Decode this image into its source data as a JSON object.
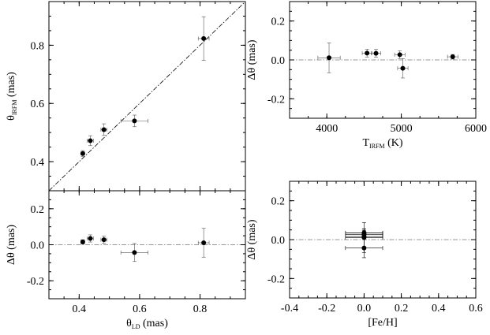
{
  "chart_data": [
    {
      "id": "theta_irfm_vs_theta_ld",
      "type": "scatter",
      "title": "",
      "ylabel": {
        "main": "θ",
        "sub": "IRFM",
        "unit": "(mas)"
      },
      "xlabel": "",
      "xlim": [
        0.3,
        0.95
      ],
      "ylim": [
        0.3,
        0.95
      ],
      "xticks": [],
      "yticks": [
        0.4,
        0.6,
        0.8
      ],
      "ytick_labels": [
        "0.4",
        "0.6",
        "0.8"
      ],
      "reference_line": "one-to-one",
      "points": [
        {
          "x": 0.412,
          "y": 0.428,
          "xerr": 0.006,
          "yerr": 0.01
        },
        {
          "x": 0.437,
          "y": 0.472,
          "xerr": 0.01,
          "yerr": 0.017
        },
        {
          "x": 0.482,
          "y": 0.51,
          "xerr": 0.01,
          "yerr": 0.02
        },
        {
          "x": 0.583,
          "y": 0.54,
          "xerr": 0.045,
          "yerr": 0.02
        },
        {
          "x": 0.812,
          "y": 0.823,
          "xerr": 0.018,
          "yerr": 0.075
        }
      ]
    },
    {
      "id": "delta_theta_vs_theta_ld",
      "type": "scatter",
      "title": "",
      "ylabel": {
        "main": "Δθ",
        "sub": "",
        "unit": "(mas)"
      },
      "xlabel": {
        "main": "θ",
        "sub": "LD",
        "unit": "(mas)"
      },
      "xlim": [
        0.3,
        0.95
      ],
      "ylim": [
        -0.3,
        0.3
      ],
      "xticks": [
        0.4,
        0.6,
        0.8
      ],
      "xtick_labels": [
        "0.4",
        "0.6",
        "0.8"
      ],
      "yticks": [
        -0.2,
        0.0,
        0.2
      ],
      "ytick_labels": [
        "-0.2",
        "0.0",
        "0.2"
      ],
      "reference_line": "zero",
      "points": [
        {
          "x": 0.412,
          "y": 0.016,
          "xerr": 0.006,
          "yerr": 0.012
        },
        {
          "x": 0.437,
          "y": 0.035,
          "xerr": 0.01,
          "yerr": 0.02
        },
        {
          "x": 0.482,
          "y": 0.028,
          "xerr": 0.01,
          "yerr": 0.02
        },
        {
          "x": 0.583,
          "y": -0.043,
          "xerr": 0.045,
          "yerr": 0.05
        },
        {
          "x": 0.812,
          "y": 0.011,
          "xerr": 0.018,
          "yerr": 0.08
        }
      ]
    },
    {
      "id": "delta_theta_vs_teff",
      "type": "scatter",
      "title": "",
      "ylabel": {
        "main": "Δθ",
        "sub": "",
        "unit": "(mas)"
      },
      "xlabel": {
        "main": "T",
        "sub": "IRFM",
        "unit": "(K)"
      },
      "xlim": [
        3500,
        6000
      ],
      "ylim": [
        -0.3,
        0.3
      ],
      "xticks": [
        4000,
        5000,
        6000
      ],
      "xtick_labels": [
        "4000",
        "5000",
        "6000"
      ],
      "yticks": [
        -0.2,
        0.0,
        0.2
      ],
      "ytick_labels": [
        "-0.2",
        "0.0",
        "0.2"
      ],
      "reference_line": "zero",
      "points": [
        {
          "x": 4030,
          "y": 0.011,
          "xerr": 150,
          "yerr": 0.077
        },
        {
          "x": 4540,
          "y": 0.035,
          "xerr": 65,
          "yerr": 0.02
        },
        {
          "x": 4660,
          "y": 0.034,
          "xerr": 65,
          "yerr": 0.02
        },
        {
          "x": 4980,
          "y": 0.027,
          "xerr": 70,
          "yerr": 0.02
        },
        {
          "x": 5020,
          "y": -0.043,
          "xerr": 70,
          "yerr": 0.05
        },
        {
          "x": 5690,
          "y": 0.016,
          "xerr": 70,
          "yerr": 0.012
        }
      ]
    },
    {
      "id": "delta_theta_vs_feh",
      "type": "scatter",
      "title": "",
      "ylabel": {
        "main": "Δθ",
        "sub": "",
        "unit": "(mas)"
      },
      "xlabel": {
        "main": "[Fe/H]",
        "sub": "",
        "unit": ""
      },
      "xlim": [
        -0.4,
        0.6
      ],
      "ylim": [
        -0.3,
        0.3
      ],
      "xticks": [
        -0.4,
        -0.2,
        0.0,
        0.2,
        0.4,
        0.6
      ],
      "xtick_labels": [
        "-0.4",
        "-0.2",
        "0.0",
        "0.2",
        "0.4",
        "0.6"
      ],
      "yticks": [
        -0.2,
        0.0,
        0.2
      ],
      "ytick_labels": [
        "-0.2",
        "0.0",
        "0.2"
      ],
      "reference_line": "zero",
      "points": [
        {
          "x": 0.0,
          "y": 0.011,
          "xerr": 0.1,
          "yerr": 0.077
        },
        {
          "x": 0.0,
          "y": 0.016,
          "xerr": 0.1,
          "yerr": 0.012
        },
        {
          "x": 0.0,
          "y": 0.027,
          "xerr": 0.1,
          "yerr": 0.02
        },
        {
          "x": 0.0,
          "y": 0.034,
          "xerr": 0.1,
          "yerr": 0.02
        },
        {
          "x": 0.0,
          "y": 0.035,
          "xerr": 0.1,
          "yerr": 0.02
        },
        {
          "x": 0.0,
          "y": -0.043,
          "xerr": 0.1,
          "yerr": 0.05
        }
      ]
    }
  ]
}
